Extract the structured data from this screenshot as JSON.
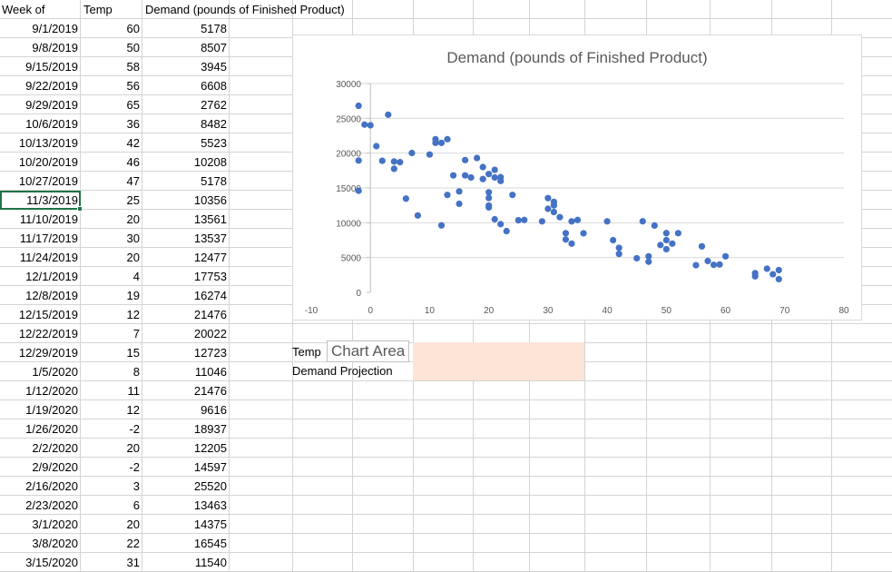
{
  "headers": {
    "week": "Week of",
    "temp": "Temp",
    "demand": "Demand (pounds of Finished Product)"
  },
  "rows": [
    {
      "week": "9/1/2019",
      "temp": "60",
      "demand": "5178"
    },
    {
      "week": "9/8/2019",
      "temp": "50",
      "demand": "8507"
    },
    {
      "week": "9/15/2019",
      "temp": "58",
      "demand": "3945"
    },
    {
      "week": "9/22/2019",
      "temp": "56",
      "demand": "6608"
    },
    {
      "week": "9/29/2019",
      "temp": "65",
      "demand": "2762"
    },
    {
      "week": "10/6/2019",
      "temp": "36",
      "demand": "8482"
    },
    {
      "week": "10/13/2019",
      "temp": "42",
      "demand": "5523"
    },
    {
      "week": "10/20/2019",
      "temp": "46",
      "demand": "10208"
    },
    {
      "week": "10/27/2019",
      "temp": "47",
      "demand": "5178"
    },
    {
      "week": "11/3/2019",
      "temp": "25",
      "demand": "10356"
    },
    {
      "week": "11/10/2019",
      "temp": "20",
      "demand": "13561"
    },
    {
      "week": "11/17/2019",
      "temp": "30",
      "demand": "13537"
    },
    {
      "week": "11/24/2019",
      "temp": "20",
      "demand": "12477"
    },
    {
      "week": "12/1/2019",
      "temp": "4",
      "demand": "17753"
    },
    {
      "week": "12/8/2019",
      "temp": "19",
      "demand": "16274"
    },
    {
      "week": "12/15/2019",
      "temp": "12",
      "demand": "21476"
    },
    {
      "week": "12/22/2019",
      "temp": "7",
      "demand": "20022"
    },
    {
      "week": "12/29/2019",
      "temp": "15",
      "demand": "12723"
    },
    {
      "week": "1/5/2020",
      "temp": "8",
      "demand": "11046"
    },
    {
      "week": "1/12/2020",
      "temp": "11",
      "demand": "21476"
    },
    {
      "week": "1/19/2020",
      "temp": "12",
      "demand": "9616"
    },
    {
      "week": "1/26/2020",
      "temp": "-2",
      "demand": "18937"
    },
    {
      "week": "2/2/2020",
      "temp": "20",
      "demand": "12205"
    },
    {
      "week": "2/9/2020",
      "temp": "-2",
      "demand": "14597"
    },
    {
      "week": "2/16/2020",
      "temp": "3",
      "demand": "25520"
    },
    {
      "week": "2/23/2020",
      "temp": "6",
      "demand": "13463"
    },
    {
      "week": "3/1/2020",
      "temp": "20",
      "demand": "14375"
    },
    {
      "week": "3/8/2020",
      "temp": "22",
      "demand": "16545"
    },
    {
      "week": "3/15/2020",
      "temp": "31",
      "demand": "11540"
    }
  ],
  "labels": {
    "temp": "Temp",
    "demand_projection": "Demand Projection"
  },
  "tooltip": "Chart Area",
  "colors": {
    "marker": "#4472c4",
    "input_fill": "#fce4d6",
    "selection": "#217346"
  },
  "chart_data": {
    "type": "scatter",
    "title": "Demand (pounds of Finished Product)",
    "xlim": [
      -10,
      80
    ],
    "ylim": [
      0,
      30000
    ],
    "x_ticks": [
      "-10",
      "0",
      "10",
      "20",
      "30",
      "40",
      "50",
      "60",
      "70",
      "80"
    ],
    "y_ticks": [
      "0",
      "5000",
      "10000",
      "15000",
      "20000",
      "25000",
      "30000"
    ],
    "grid": true,
    "points": [
      [
        60,
        5178
      ],
      [
        50,
        8507
      ],
      [
        58,
        3945
      ],
      [
        56,
        6608
      ],
      [
        65,
        2762
      ],
      [
        36,
        8482
      ],
      [
        42,
        5523
      ],
      [
        46,
        10208
      ],
      [
        47,
        5178
      ],
      [
        25,
        10356
      ],
      [
        20,
        13561
      ],
      [
        30,
        13537
      ],
      [
        20,
        12477
      ],
      [
        4,
        17753
      ],
      [
        19,
        16274
      ],
      [
        12,
        21476
      ],
      [
        7,
        20022
      ],
      [
        15,
        12723
      ],
      [
        8,
        11046
      ],
      [
        11,
        21476
      ],
      [
        12,
        9616
      ],
      [
        -2,
        18937
      ],
      [
        20,
        12205
      ],
      [
        -2,
        14597
      ],
      [
        3,
        25520
      ],
      [
        6,
        13463
      ],
      [
        20,
        14375
      ],
      [
        22,
        16545
      ],
      [
        31,
        11540
      ],
      [
        -2,
        26800
      ],
      [
        -1,
        24100
      ],
      [
        0,
        24000
      ],
      [
        1,
        21000
      ],
      [
        2,
        18900
      ],
      [
        4,
        18800
      ],
      [
        5,
        18700
      ],
      [
        10,
        19800
      ],
      [
        11,
        22000
      ],
      [
        13,
        22000
      ],
      [
        14,
        16800
      ],
      [
        13,
        14000
      ],
      [
        15,
        14500
      ],
      [
        16,
        19000
      ],
      [
        16,
        16800
      ],
      [
        17,
        16500
      ],
      [
        18,
        19300
      ],
      [
        19,
        18000
      ],
      [
        20,
        17000
      ],
      [
        21,
        17600
      ],
      [
        21,
        16500
      ],
      [
        22,
        16000
      ],
      [
        24,
        14000
      ],
      [
        21,
        10500
      ],
      [
        22,
        9800
      ],
      [
        23,
        8800
      ],
      [
        26,
        10400
      ],
      [
        29,
        10200
      ],
      [
        30,
        12000
      ],
      [
        31,
        12500
      ],
      [
        31,
        13000
      ],
      [
        32,
        10800
      ],
      [
        33,
        7600
      ],
      [
        33,
        8500
      ],
      [
        34,
        10200
      ],
      [
        34,
        7000
      ],
      [
        35,
        10400
      ],
      [
        40,
        10200
      ],
      [
        41,
        7500
      ],
      [
        42,
        6400
      ],
      [
        45,
        4900
      ],
      [
        47,
        4400
      ],
      [
        48,
        9600
      ],
      [
        49,
        6800
      ],
      [
        50,
        7500
      ],
      [
        50,
        6200
      ],
      [
        51,
        7000
      ],
      [
        52,
        8500
      ],
      [
        55,
        3900
      ],
      [
        57,
        4500
      ],
      [
        59,
        4000
      ],
      [
        65,
        2300
      ],
      [
        67,
        3400
      ],
      [
        68,
        2600
      ],
      [
        69,
        3200
      ],
      [
        69,
        1900
      ]
    ]
  }
}
